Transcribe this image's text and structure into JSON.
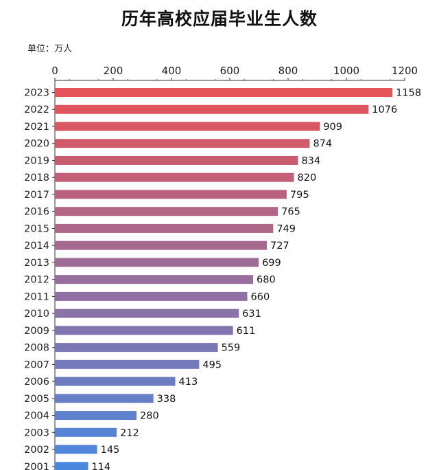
{
  "chart_data": {
    "type": "bar",
    "orientation": "horizontal",
    "title": "历年高校应届毕业生人数",
    "unit_label": "单位：万人",
    "categories": [
      "2023",
      "2022",
      "2021",
      "2020",
      "2019",
      "2018",
      "2017",
      "2016",
      "2015",
      "2014",
      "2013",
      "2012",
      "2011",
      "2010",
      "2009",
      "2008",
      "2007",
      "2006",
      "2005",
      "2004",
      "2003",
      "2002",
      "2001"
    ],
    "values": [
      1158,
      1076,
      909,
      874,
      834,
      820,
      795,
      765,
      749,
      727,
      699,
      680,
      660,
      631,
      611,
      559,
      495,
      413,
      338,
      280,
      212,
      145,
      114
    ],
    "xlim": [
      0,
      1200
    ],
    "xticks": [
      0,
      200,
      400,
      600,
      800,
      1000,
      1200
    ],
    "axis_position": "top",
    "grid": false,
    "legend": "none",
    "colors": {
      "start": "#e45458",
      "end": "#4a88e0"
    }
  }
}
